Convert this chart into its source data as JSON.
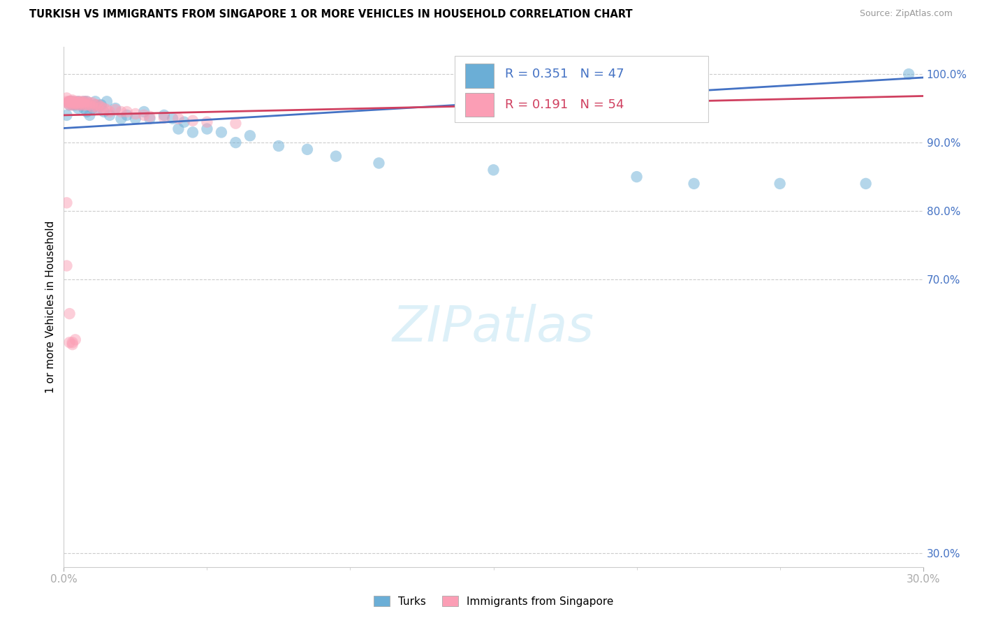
{
  "title": "TURKISH VS IMMIGRANTS FROM SINGAPORE 1 OR MORE VEHICLES IN HOUSEHOLD CORRELATION CHART",
  "source": "Source: ZipAtlas.com",
  "ylabel": "1 or more Vehicles in Household",
  "legend_label1": "Turks",
  "legend_label2": "Immigrants from Singapore",
  "R1": 0.351,
  "N1": 47,
  "R2": 0.191,
  "N2": 54,
  "color_blue": "#6baed6",
  "color_pink": "#fb9eb5",
  "color_blue_line": "#4472c4",
  "color_pink_line": "#d04060",
  "color_blue_text": "#4472c4",
  "color_pink_text": "#d04060",
  "xlim": [
    0.0,
    0.3
  ],
  "ylim": [
    0.28,
    1.04
  ],
  "ytick_values": [
    1.0,
    0.9,
    0.8,
    0.7,
    0.3
  ],
  "ytick_labels": [
    "100.0%",
    "90.0%",
    "80.0%",
    "70.0%",
    "30.0%"
  ],
  "turks_x": [
    0.001,
    0.002,
    0.002,
    0.003,
    0.003,
    0.004,
    0.005,
    0.005,
    0.006,
    0.007,
    0.007,
    0.008,
    0.008,
    0.009,
    0.01,
    0.011,
    0.011,
    0.012,
    0.013,
    0.014,
    0.015,
    0.016,
    0.018,
    0.02,
    0.022,
    0.025,
    0.028,
    0.03,
    0.035,
    0.038,
    0.04,
    0.042,
    0.045,
    0.05,
    0.055,
    0.06,
    0.065,
    0.075,
    0.085,
    0.095,
    0.11,
    0.15,
    0.2,
    0.22,
    0.25,
    0.28,
    0.295
  ],
  "turks_y": [
    0.94,
    0.955,
    0.96,
    0.955,
    0.96,
    0.955,
    0.95,
    0.96,
    0.955,
    0.95,
    0.96,
    0.945,
    0.96,
    0.94,
    0.95,
    0.955,
    0.96,
    0.95,
    0.955,
    0.945,
    0.96,
    0.94,
    0.95,
    0.935,
    0.94,
    0.935,
    0.945,
    0.935,
    0.94,
    0.935,
    0.92,
    0.93,
    0.915,
    0.92,
    0.915,
    0.9,
    0.91,
    0.895,
    0.89,
    0.88,
    0.87,
    0.86,
    0.85,
    0.84,
    0.84,
    0.84,
    1.0
  ],
  "singapore_x": [
    0.001,
    0.001,
    0.001,
    0.002,
    0.002,
    0.002,
    0.002,
    0.003,
    0.003,
    0.003,
    0.003,
    0.004,
    0.004,
    0.004,
    0.005,
    0.005,
    0.005,
    0.006,
    0.006,
    0.006,
    0.007,
    0.007,
    0.007,
    0.008,
    0.008,
    0.009,
    0.009,
    0.01,
    0.01,
    0.011,
    0.012,
    0.012,
    0.013,
    0.014,
    0.015,
    0.016,
    0.018,
    0.02,
    0.022,
    0.025,
    0.028,
    0.03,
    0.035,
    0.04,
    0.045,
    0.05,
    0.06,
    0.001,
    0.001,
    0.002,
    0.002,
    0.003,
    0.003,
    0.004
  ],
  "singapore_y": [
    0.958,
    0.96,
    0.965,
    0.96,
    0.958,
    0.955,
    0.96,
    0.96,
    0.958,
    0.955,
    0.962,
    0.958,
    0.96,
    0.956,
    0.958,
    0.955,
    0.96,
    0.958,
    0.955,
    0.96,
    0.955,
    0.96,
    0.958,
    0.955,
    0.96,
    0.955,
    0.958,
    0.952,
    0.958,
    0.955,
    0.95,
    0.955,
    0.952,
    0.95,
    0.948,
    0.945,
    0.948,
    0.945,
    0.945,
    0.942,
    0.94,
    0.938,
    0.936,
    0.935,
    0.932,
    0.93,
    0.928,
    0.812,
    0.72,
    0.65,
    0.608,
    0.605,
    0.608,
    0.612
  ],
  "turks_line_x0": 0.0,
  "turks_line_y0": 0.921,
  "turks_line_x1": 0.3,
  "turks_line_y1": 0.995,
  "sing_line_x0": 0.0,
  "sing_line_y0": 0.94,
  "sing_line_x1": 0.3,
  "sing_line_y1": 0.968
}
